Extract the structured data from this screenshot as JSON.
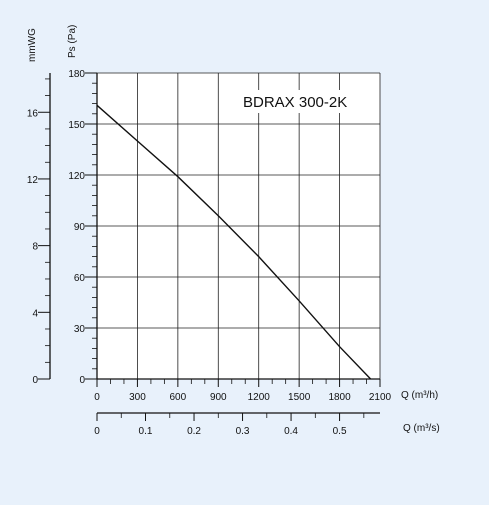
{
  "colors": {
    "background": "#e8f1fb",
    "plot_background": "#ffffff",
    "grid": "#222222",
    "curve": "#111111"
  },
  "chart_data": {
    "type": "line",
    "title": "BDRAX 300-2K",
    "xlabel": "Q (m³/h)",
    "x2label": "Q (m³/s)",
    "ylabel": "Ps (Pa)",
    "y2label": "mmWG",
    "xlim": [
      0,
      2100
    ],
    "ylim": [
      0,
      180
    ],
    "x_ticks": [
      0,
      300,
      600,
      900,
      1200,
      1500,
      1800,
      2100
    ],
    "x2_ticks": [
      0,
      0.1,
      0.2,
      0.3,
      0.4,
      0.5
    ],
    "x2_tick_labels": [
      "0",
      "0.1",
      "0.2",
      "0.3",
      "0.4",
      "0.5"
    ],
    "y_ticks": [
      0,
      30,
      60,
      90,
      120,
      150,
      180
    ],
    "y2_ticks": [
      0,
      4,
      8,
      12,
      16
    ],
    "grid": true,
    "series": [
      {
        "x": [
          0,
          300,
          600,
          900,
          1200,
          1500,
          1800,
          2030
        ],
        "y": [
          161,
          140,
          119,
          96,
          72,
          46,
          19,
          0
        ]
      }
    ]
  }
}
